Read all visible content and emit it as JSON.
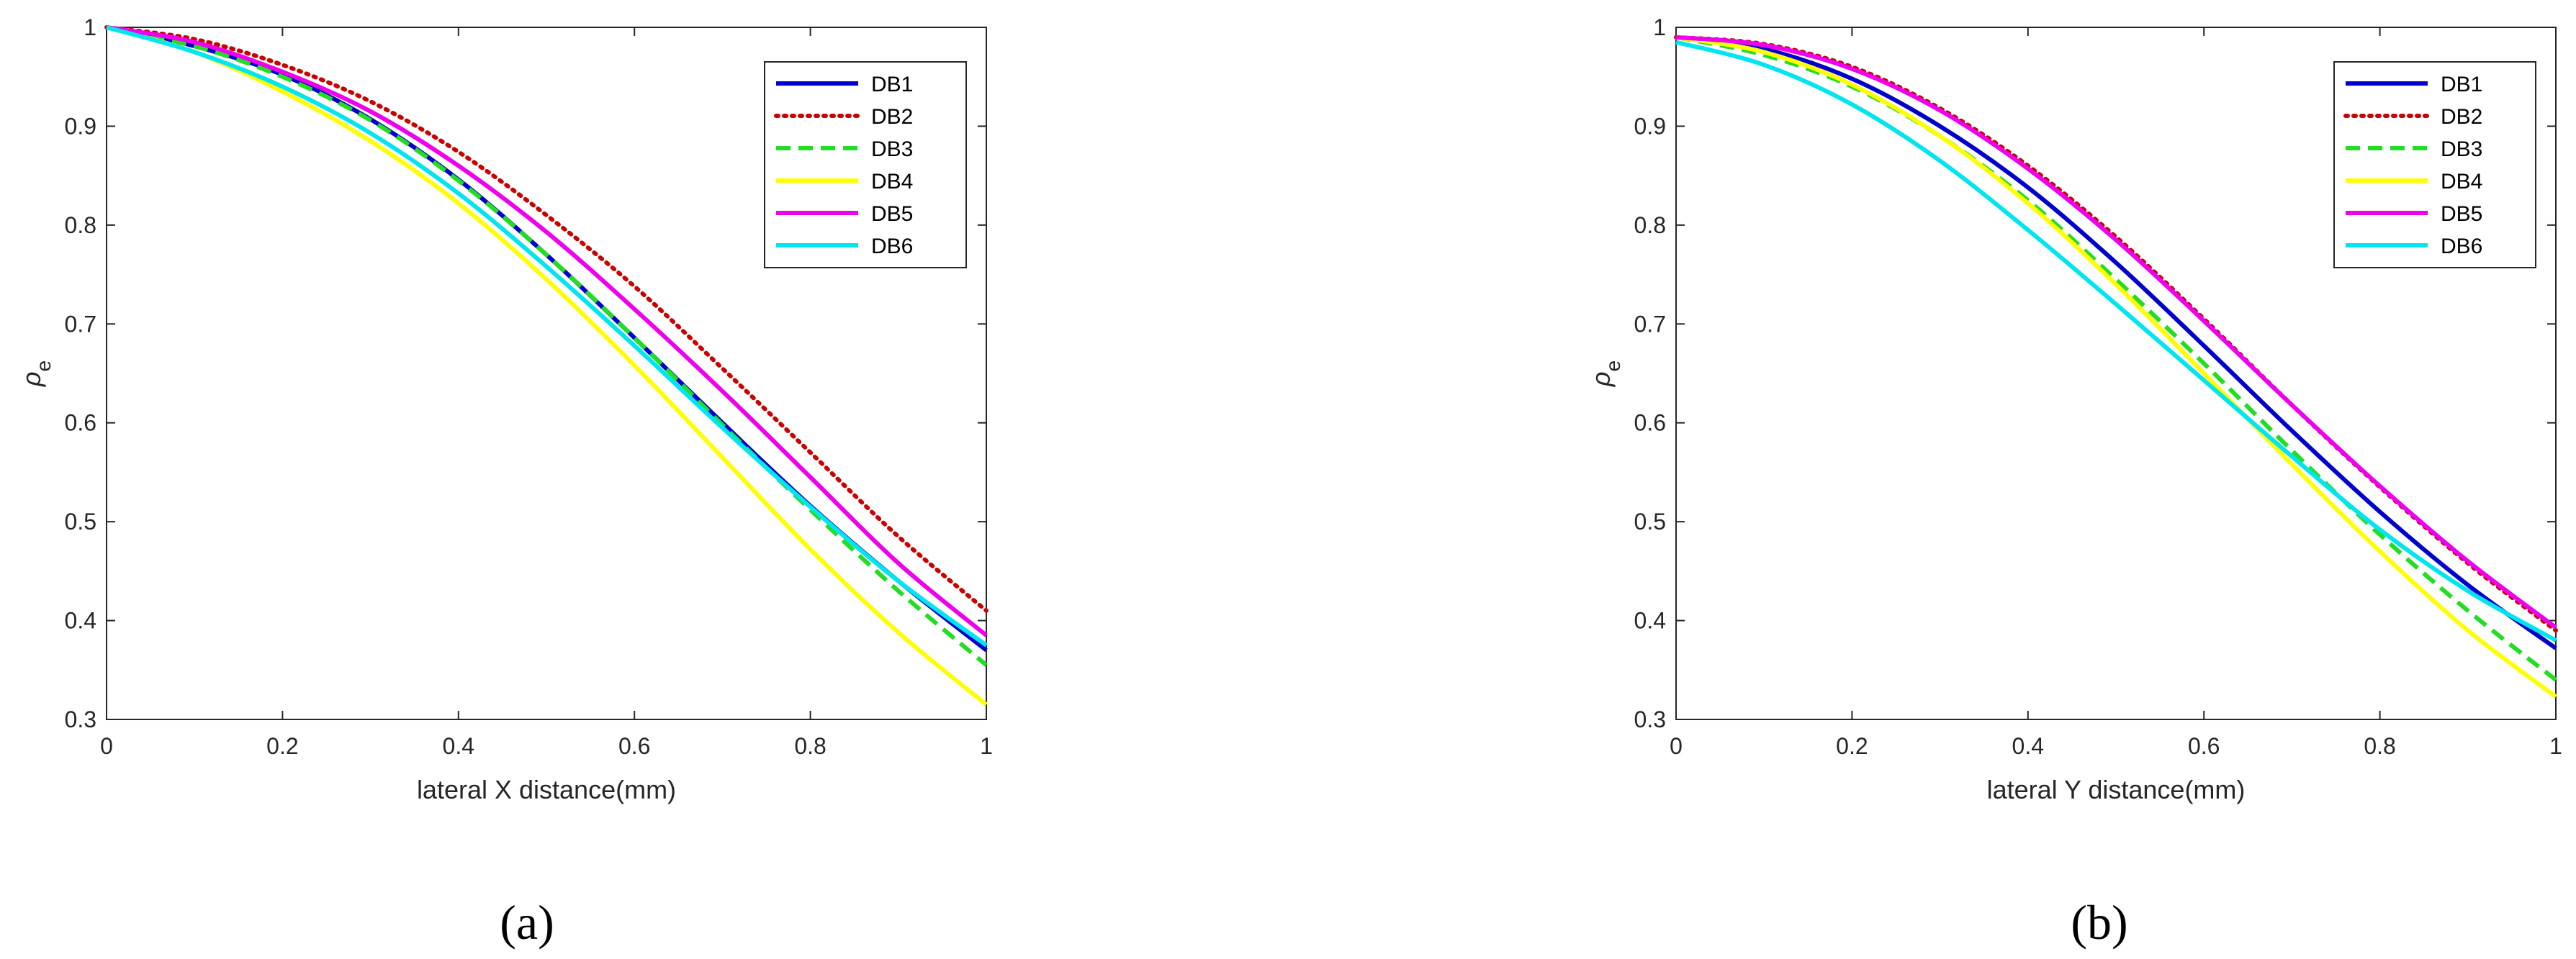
{
  "chart_data": [
    {
      "type": "line",
      "panel_label": "(a)",
      "xlabel": "lateral X distance(mm)",
      "ylabel": "ρ",
      "ylabel_sub": "e",
      "xlim": [
        0,
        1
      ],
      "ylim": [
        0.3,
        1
      ],
      "xticks": [
        0,
        0.2,
        0.4,
        0.6,
        0.8,
        1
      ],
      "xtick_labels": [
        "0",
        "0.2",
        "0.4",
        "0.6",
        "0.8",
        "1"
      ],
      "yticks": [
        0.3,
        0.4,
        0.5,
        0.6,
        0.7,
        0.8,
        0.9,
        1
      ],
      "ytick_labels": [
        "0.3",
        "0.4",
        "0.5",
        "0.6",
        "0.7",
        "0.8",
        "0.9",
        "1"
      ],
      "grid": false,
      "legend_position": "top-right",
      "x": [
        0,
        0.1,
        0.2,
        0.3,
        0.4,
        0.5,
        0.6,
        0.7,
        0.8,
        0.9,
        1.0
      ],
      "series": [
        {
          "name": "DB1",
          "color": "#0000CD",
          "dash": "solid",
          "values": [
            1.0,
            0.981,
            0.952,
            0.907,
            0.846,
            0.77,
            0.686,
            0.6,
            0.516,
            0.44,
            0.37
          ]
        },
        {
          "name": "DB2",
          "color": "#CC0000",
          "dash": "dotted",
          "values": [
            1.0,
            0.988,
            0.962,
            0.925,
            0.874,
            0.81,
            0.738,
            0.655,
            0.57,
            0.485,
            0.41
          ]
        },
        {
          "name": "DB3",
          "color": "#22DD22",
          "dash": "dashed",
          "values": [
            1.0,
            0.981,
            0.95,
            0.906,
            0.845,
            0.77,
            0.686,
            0.598,
            0.512,
            0.43,
            0.355
          ]
        },
        {
          "name": "DB4",
          "color": "#FFFF00",
          "dash": "solid",
          "values": [
            1.0,
            0.975,
            0.935,
            0.885,
            0.822,
            0.745,
            0.658,
            0.565,
            0.472,
            0.388,
            0.315
          ]
        },
        {
          "name": "DB5",
          "color": "#EE00EE",
          "dash": "solid",
          "values": [
            1.0,
            0.985,
            0.955,
            0.915,
            0.86,
            0.793,
            0.715,
            0.632,
            0.545,
            0.458,
            0.385
          ]
        },
        {
          "name": "DB6",
          "color": "#00E5EE",
          "dash": "solid",
          "values": [
            1.0,
            0.975,
            0.94,
            0.893,
            0.832,
            0.758,
            0.678,
            0.595,
            0.515,
            0.44,
            0.375
          ]
        }
      ]
    },
    {
      "type": "line",
      "panel_label": "(b)",
      "xlabel": "lateral Y distance(mm)",
      "ylabel": "ρ",
      "ylabel_sub": "e",
      "xlim": [
        0,
        1
      ],
      "ylim": [
        0.3,
        1
      ],
      "xticks": [
        0,
        0.2,
        0.4,
        0.6,
        0.8,
        1
      ],
      "xtick_labels": [
        "0",
        "0.2",
        "0.4",
        "0.6",
        "0.8",
        "1"
      ],
      "yticks": [
        0.3,
        0.4,
        0.5,
        0.6,
        0.7,
        0.8,
        0.9,
        1
      ],
      "ytick_labels": [
        "0.3",
        "0.4",
        "0.5",
        "0.6",
        "0.7",
        "0.8",
        "0.9",
        "1"
      ],
      "grid": false,
      "legend_position": "top-right",
      "x": [
        0,
        0.1,
        0.2,
        0.3,
        0.4,
        0.5,
        0.6,
        0.7,
        0.8,
        0.9,
        1.0
      ],
      "series": [
        {
          "name": "DB1",
          "color": "#0000CD",
          "dash": "solid",
          "values": [
            0.99,
            0.978,
            0.948,
            0.9,
            0.838,
            0.762,
            0.678,
            0.592,
            0.51,
            0.436,
            0.372
          ]
        },
        {
          "name": "DB2",
          "color": "#CC0000",
          "dash": "dotted",
          "values": [
            0.99,
            0.983,
            0.96,
            0.918,
            0.86,
            0.788,
            0.705,
            0.618,
            0.535,
            0.458,
            0.39
          ]
        },
        {
          "name": "DB3",
          "color": "#22DD22",
          "dash": "dashed",
          "values": [
            0.99,
            0.972,
            0.94,
            0.89,
            0.825,
            0.745,
            0.66,
            0.572,
            0.487,
            0.41,
            0.34
          ]
        },
        {
          "name": "DB4",
          "color": "#FFFF00",
          "dash": "solid",
          "values": [
            0.99,
            0.975,
            0.942,
            0.89,
            0.822,
            0.74,
            0.65,
            0.558,
            0.47,
            0.39,
            0.323
          ]
        },
        {
          "name": "DB5",
          "color": "#EE00EE",
          "dash": "solid",
          "values": [
            0.99,
            0.982,
            0.958,
            0.916,
            0.857,
            0.785,
            0.703,
            0.618,
            0.536,
            0.46,
            0.393
          ]
        },
        {
          "name": "DB6",
          "color": "#00E5EE",
          "dash": "solid",
          "values": [
            0.985,
            0.962,
            0.922,
            0.865,
            0.795,
            0.72,
            0.643,
            0.566,
            0.492,
            0.43,
            0.38
          ]
        }
      ]
    }
  ]
}
